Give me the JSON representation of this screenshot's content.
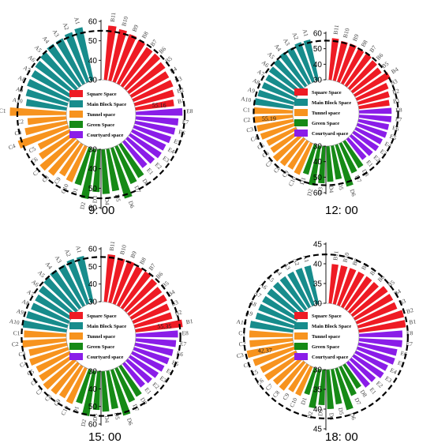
{
  "colors": {
    "square": "#ee1b24",
    "main_block": "#178c8c",
    "tunnel": "#f7931e",
    "green": "#168a16",
    "courtyard": "#8a1de8"
  },
  "legend": [
    {
      "key": "square",
      "label": "Square Space"
    },
    {
      "key": "main_block",
      "label": "Main Block Space"
    },
    {
      "key": "tunnel",
      "label": "Tunnel space"
    },
    {
      "key": "green",
      "label": "Green Space"
    },
    {
      "key": "courtyard",
      "label": "Courtyard space"
    }
  ],
  "chart_data": [
    {
      "type": "radial-bar",
      "time_label": "9: 00",
      "rmin": 30,
      "rmax": 60,
      "ticks": [
        30,
        40,
        50,
        60
      ],
      "dashed_ring": 55.16,
      "annotation": "55.16",
      "annotation_at": "B1",
      "groups": [
        {
          "key": "square",
          "labels": [
            "B11",
            "B10",
            "B9",
            "B8",
            "B7",
            "B6",
            "B5",
            "B4",
            "B3",
            "B2",
            "B1"
          ],
          "values": [
            58,
            57,
            56,
            55,
            54,
            54,
            53,
            52,
            52,
            51,
            50
          ]
        },
        {
          "key": "courtyard",
          "labels": [
            "E8",
            "E7",
            "E6",
            "E5",
            "E4",
            "E3",
            "E2",
            "E1"
          ],
          "values": [
            54,
            52,
            51,
            50,
            49,
            49,
            48,
            47
          ]
        },
        {
          "key": "green",
          "labels": [
            "D8",
            "D7",
            "D6",
            "D5",
            "D4",
            "D3",
            "D2",
            "D1"
          ],
          "values": [
            50,
            51,
            57,
            52,
            53,
            52,
            56,
            50
          ]
        },
        {
          "key": "tunnel",
          "labels": [
            "C10",
            "C9",
            "C8",
            "C7",
            "C6",
            "C5",
            "C4",
            "C3",
            "C2",
            "C1"
          ],
          "values": [
            50,
            49,
            52,
            53,
            50,
            48,
            57,
            52,
            50,
            59
          ]
        },
        {
          "key": "main_block",
          "labels": [
            "A10",
            "A9",
            "A8",
            "A7",
            "A6",
            "A5",
            "A4",
            "A3",
            "A2",
            "A1"
          ],
          "values": [
            51,
            52,
            53,
            53,
            54,
            55,
            56,
            56,
            57,
            58
          ]
        }
      ]
    },
    {
      "type": "radial-bar",
      "time_label": "12: 00",
      "rmin": 30,
      "rmax": 60,
      "ticks": [
        30,
        40,
        50,
        60
      ],
      "dashed_ring": 55.19,
      "annotation": "55.19",
      "annotation_at": "C2",
      "groups": [
        {
          "key": "square",
          "labels": [
            "B11",
            "B10",
            "B9",
            "B8",
            "B7",
            "B6",
            "B5",
            "B4",
            "B3",
            "B2",
            "B1"
          ],
          "values": [
            57,
            56,
            56,
            55,
            55,
            54,
            53,
            56,
            52,
            51,
            50
          ]
        },
        {
          "key": "courtyard",
          "labels": [
            "E8",
            "E7",
            "E6",
            "E5",
            "E4",
            "E3",
            "E2",
            "E1"
          ],
          "values": [
            51,
            51,
            50,
            50,
            49,
            49,
            48,
            47
          ]
        },
        {
          "key": "green",
          "labels": [
            "D8",
            "D7",
            "D6",
            "D5",
            "D4",
            "D3",
            "D2",
            "D1"
          ],
          "values": [
            50,
            51,
            58,
            52,
            53,
            54,
            56,
            50
          ]
        },
        {
          "key": "tunnel",
          "labels": [
            "C10",
            "C9",
            "C8",
            "C7",
            "C6",
            "C5",
            "C4",
            "C3",
            "C2",
            "C1"
          ],
          "values": [
            52,
            51,
            52,
            53,
            51,
            51,
            53,
            54,
            55,
            55
          ]
        },
        {
          "key": "main_block",
          "labels": [
            "A10",
            "A9",
            "A8",
            "A7",
            "A6",
            "A5",
            "A4",
            "A3",
            "A2",
            "A1"
          ],
          "values": [
            55,
            54,
            53,
            53,
            54,
            55,
            56,
            56,
            57,
            57
          ]
        }
      ]
    },
    {
      "type": "radial-bar",
      "time_label": "15: 00",
      "rmin": 30,
      "rmax": 60,
      "ticks": [
        30,
        40,
        50,
        60
      ],
      "dashed_ring": 55.35,
      "annotation": "55.35",
      "annotation_at": "B1",
      "groups": [
        {
          "key": "square",
          "labels": [
            "B11",
            "B10",
            "B9",
            "B8",
            "B7",
            "B6",
            "B5",
            "B4",
            "B3",
            "B2",
            "B1"
          ],
          "values": [
            57,
            56,
            56,
            55,
            55,
            54,
            53,
            53,
            52,
            52,
            57
          ]
        },
        {
          "key": "courtyard",
          "labels": [
            "E8",
            "E7",
            "E6",
            "E5",
            "E4",
            "E3",
            "E2",
            "E1"
          ],
          "values": [
            54,
            53,
            52,
            51,
            50,
            49,
            48,
            47
          ]
        },
        {
          "key": "green",
          "labels": [
            "D8",
            "D7",
            "D6",
            "D5",
            "D4",
            "D3",
            "D2",
            "D1"
          ],
          "values": [
            50,
            51,
            57,
            52,
            53,
            52,
            56,
            50
          ]
        },
        {
          "key": "tunnel",
          "labels": [
            "C10",
            "C9",
            "C8",
            "C7",
            "C6",
            "C5",
            "C4",
            "C3",
            "C2",
            "C1"
          ],
          "values": [
            52,
            51,
            52,
            53,
            52,
            51,
            53,
            52,
            55,
            54
          ]
        },
        {
          "key": "main_block",
          "labels": [
            "A10",
            "A9",
            "A8",
            "A7",
            "A6",
            "A5",
            "A4",
            "A3",
            "A2",
            "A1"
          ],
          "values": [
            55,
            54,
            53,
            53,
            54,
            55,
            56,
            56,
            57,
            57
          ]
        }
      ]
    },
    {
      "type": "radial-bar",
      "time_label": "18: 00",
      "rmin": 30,
      "rmax": 45,
      "ticks": [
        30,
        35,
        40,
        45
      ],
      "dashed_ring": 42.37,
      "annotation": "42.37",
      "annotation_at": "C3",
      "groups": [
        {
          "key": "square",
          "labels": [
            "B11",
            "B10",
            "B9",
            "B8",
            "B7",
            "B6",
            "B5",
            "B4",
            "B3",
            "B2",
            "B1"
          ],
          "values": [
            40,
            40,
            40,
            40,
            40,
            40,
            41,
            41,
            41,
            42,
            42
          ]
        },
        {
          "key": "courtyard",
          "labels": [
            "E8",
            "E7",
            "E6",
            "E5",
            "E4",
            "E3",
            "E2",
            "E1"
          ],
          "values": [
            41,
            41,
            40,
            40,
            39,
            39,
            38,
            38
          ]
        },
        {
          "key": "green",
          "labels": [
            "D8",
            "D7",
            "D6",
            "D5",
            "D4",
            "D3",
            "D2",
            "D1"
          ],
          "values": [
            37,
            38,
            41,
            39,
            40,
            39,
            40,
            37
          ]
        },
        {
          "key": "tunnel",
          "labels": [
            "C10",
            "C9",
            "C8",
            "C7",
            "C6",
            "C5",
            "C4",
            "C3",
            "C2",
            "C1"
          ],
          "values": [
            38,
            38,
            39,
            39,
            40,
            40,
            41,
            42,
            41,
            41
          ]
        },
        {
          "key": "main_block",
          "labels": [
            "A10",
            "A9",
            "A8",
            "A7",
            "A6",
            "A5",
            "A4",
            "A3",
            "A2",
            "A1"
          ],
          "values": [
            41,
            40,
            40,
            40,
            40,
            40,
            40,
            40,
            40,
            40
          ]
        }
      ]
    }
  ]
}
